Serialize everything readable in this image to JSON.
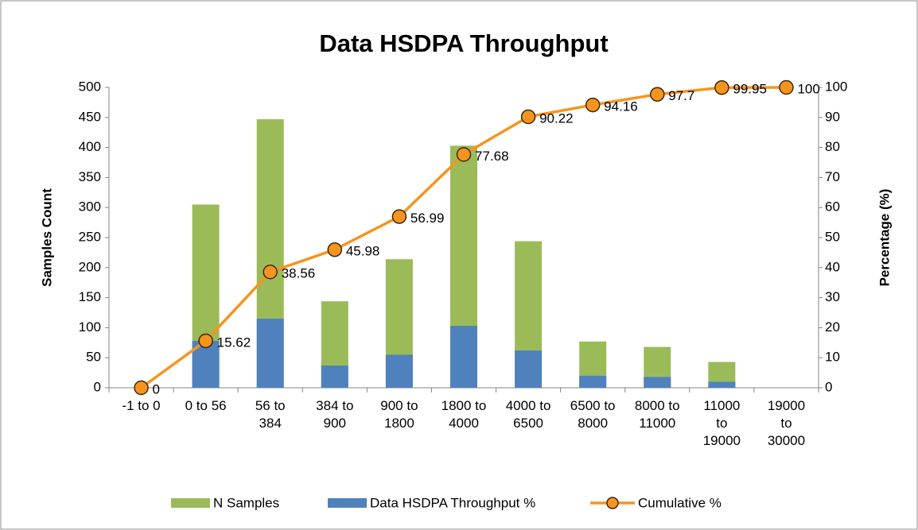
{
  "chart_data": {
    "type": "bar",
    "title": "Data HSDPA Throughput",
    "y_label": "Samples Count",
    "y2_label": "Percentage (%)",
    "categories": [
      "-1 to 0",
      "0 to 56",
      "56 to 384",
      "384 to 900",
      "900 to 1800",
      "1800 to 4000",
      "4000 to 6500",
      "6500 to 8000",
      "8000 to 11000",
      "11000 to 19000",
      "19000 to 30000"
    ],
    "series": [
      {
        "name": "N Samples",
        "type": "bar",
        "color": "#9bbb59",
        "values": [
          0,
          305,
          447,
          144,
          214,
          403,
          244,
          77,
          68,
          43,
          0
        ]
      },
      {
        "name": "Data HSDPA Throughput %",
        "type": "bar",
        "color": "#4f81bd",
        "values": [
          0,
          78,
          115,
          37,
          55,
          103,
          62,
          20,
          18,
          10,
          0
        ]
      },
      {
        "name": "Cumulative %",
        "type": "line",
        "axis": "y2",
        "color": "#f7941d",
        "values": [
          0,
          15.62,
          38.56,
          45.98,
          56.99,
          77.68,
          90.22,
          94.16,
          97.7,
          99.95,
          100
        ]
      }
    ],
    "ylim": [
      0,
      500
    ],
    "yticks": [
      0,
      50,
      100,
      150,
      200,
      250,
      300,
      350,
      400,
      450,
      500
    ],
    "y2lim": [
      0,
      100
    ],
    "y2ticks": [
      0,
      10,
      20,
      30,
      40,
      50,
      60,
      70,
      80,
      90,
      100
    ],
    "grid": false,
    "legend": "bottom"
  }
}
